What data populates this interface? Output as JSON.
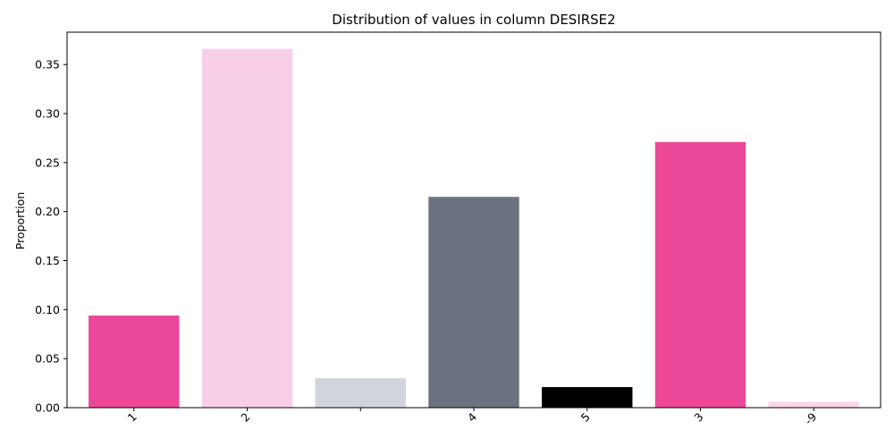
{
  "chart_data": {
    "type": "bar",
    "title": "Distribution of values in column DESIRSE2",
    "xlabel": "",
    "ylabel": "Proportion",
    "categories": [
      "1",
      "2",
      "",
      "4",
      "5",
      "3",
      "-9"
    ],
    "values": [
      0.094,
      0.366,
      0.03,
      0.215,
      0.021,
      0.271,
      0.006
    ],
    "colors": [
      "#ec4899",
      "#f9cfe7",
      "#d1d5db",
      "#6b7280",
      "#000000",
      "#ec4899",
      "#fbd6ea"
    ],
    "ylim": [
      0,
      0.383
    ],
    "yticks": [
      "0.00",
      "0.05",
      "0.10",
      "0.15",
      "0.20",
      "0.25",
      "0.30",
      "0.35"
    ],
    "ytick_values": [
      0,
      0.05,
      0.1,
      0.15,
      0.2,
      0.25,
      0.3,
      0.35
    ],
    "grid": false,
    "legend": "none"
  }
}
